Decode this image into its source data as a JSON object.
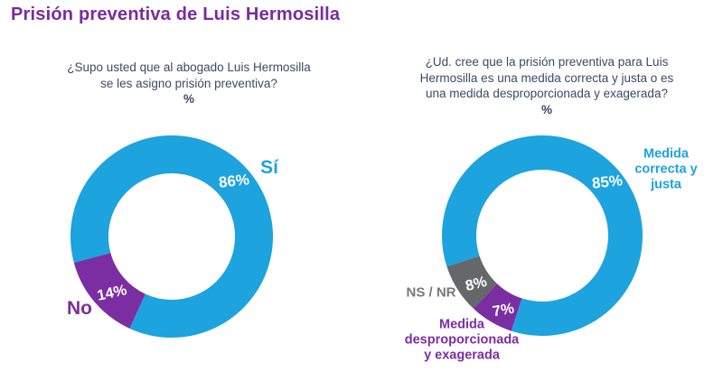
{
  "page_title": "Prisión preventiva de Luis Hermosilla",
  "colors": {
    "title": "#7A2B9D",
    "question_text": "#3E4964",
    "blue": "#1DA3DE",
    "purple": "#7B2EA2",
    "gray_segment": "#666769",
    "gray_label": "#77787B",
    "value_label": "#FFFFFF",
    "background": "#FFFFFF"
  },
  "chart_data": [
    {
      "type": "pie",
      "subtype": "donut",
      "title": "¿Supo usted que al abogado Luis Hermosilla se les asigno prisión preventiva?",
      "question_lines": [
        "¿Supo usted que al abogado Luis Hermosilla",
        "se les asigno prisión preventiva?"
      ],
      "unit_label": "%",
      "categories": [
        "Sí",
        "No"
      ],
      "values": [
        86,
        14
      ],
      "value_labels": [
        "86%",
        "14%"
      ],
      "segment_colors": [
        "#1DA3DE",
        "#7B2EA2"
      ],
      "start_angle_deg": 255,
      "legend_position": "labels-around-donut"
    },
    {
      "type": "pie",
      "subtype": "donut",
      "title": "¿Ud. cree que la prisión preventiva para Luis Hermosilla es una medida correcta y justa o es una medida desproporcionada y exagerada?",
      "question_lines": [
        "¿Ud. cree que la prisión preventiva para Luis",
        "Hermosilla es una medida correcta y justa o es",
        "una medida desproporcionada y exagerada?"
      ],
      "unit_label": "%",
      "categories": [
        "Medida correcta y justa",
        "Medida desproporcionada y exagerada",
        "NS / NR"
      ],
      "values": [
        85,
        7,
        8
      ],
      "value_labels": [
        "85%",
        "7%",
        "8%"
      ],
      "segment_colors": [
        "#1DA3DE",
        "#7B2EA2",
        "#666769"
      ],
      "start_angle_deg": 252,
      "legend_position": "labels-around-donut",
      "category_label_lines": {
        "correcta": [
          "Medida",
          "correcta y",
          "justa"
        ],
        "desproporcionada": [
          "Medida",
          "desproporcionada",
          "y exagerada"
        ],
        "nsnr": "NS / NR"
      }
    }
  ]
}
